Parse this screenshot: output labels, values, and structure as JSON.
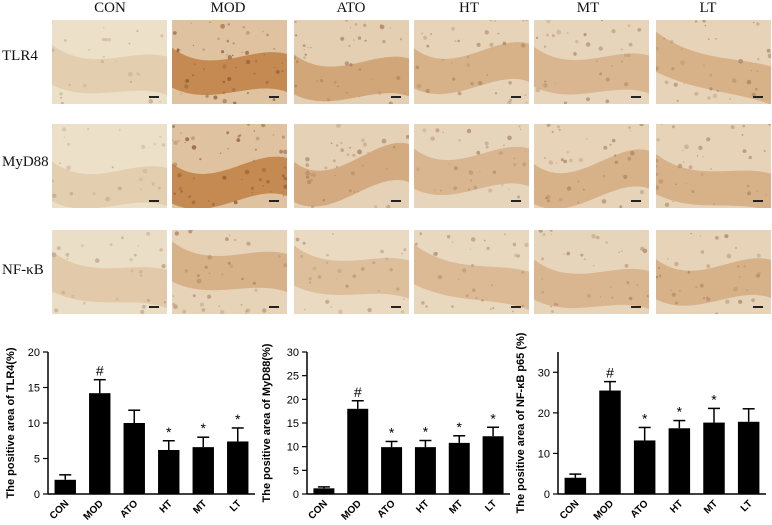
{
  "micrographs": {
    "columns": [
      "CON",
      "MOD",
      "ATO",
      "HT",
      "MT",
      "LT"
    ],
    "rows": [
      "TLR4",
      "MyD88",
      "NF-κB"
    ],
    "intensity": [
      [
        0.15,
        0.85,
        0.55,
        0.45,
        0.4,
        0.45
      ],
      [
        0.15,
        0.85,
        0.5,
        0.4,
        0.45,
        0.45
      ],
      [
        0.2,
        0.45,
        0.3,
        0.35,
        0.4,
        0.45
      ]
    ],
    "stain_color": "#b8702e",
    "background_color": "#efe6d2"
  },
  "chart_data": [
    {
      "type": "bar",
      "categories": [
        "CON",
        "MOD",
        "ATO",
        "HT",
        "MT",
        "LT"
      ],
      "values": [
        2.0,
        14.2,
        10.0,
        6.2,
        6.6,
        7.4
      ],
      "errors": [
        0.7,
        1.9,
        1.8,
        1.3,
        1.4,
        1.9
      ],
      "markers": [
        "",
        "#",
        "",
        "*",
        "*",
        "*"
      ],
      "ylabel": "The positive area of TLR4(%)",
      "ylim": [
        0,
        20
      ],
      "yticks": [
        0,
        5,
        10,
        15,
        20
      ],
      "bar_color": "#000000"
    },
    {
      "type": "bar",
      "categories": [
        "CON",
        "MOD",
        "ATO",
        "HT",
        "MT",
        "LT"
      ],
      "values": [
        1.2,
        18.0,
        9.9,
        9.9,
        10.8,
        12.2
      ],
      "errors": [
        0.3,
        1.7,
        1.2,
        1.4,
        1.5,
        1.9
      ],
      "markers": [
        "",
        "#",
        "*",
        "*",
        "*",
        "*"
      ],
      "ylabel": "The positive area of MyD88(%)",
      "ylim": [
        0,
        30
      ],
      "yticks": [
        0,
        5,
        10,
        15,
        20,
        25,
        30
      ],
      "bar_color": "#000000"
    },
    {
      "type": "bar",
      "categories": [
        "CON",
        "MOD",
        "ATO",
        "HT",
        "MT",
        "LT"
      ],
      "values": [
        4.0,
        25.5,
        13.2,
        16.2,
        17.6,
        17.8
      ],
      "errors": [
        0.9,
        2.2,
        3.2,
        1.9,
        3.5,
        3.2
      ],
      "markers": [
        "",
        "#",
        "*",
        "*",
        "*",
        ""
      ],
      "ylabel": "The positive area of NF-κB p65 (%)",
      "ylim": [
        0,
        35
      ],
      "yticks": [
        0,
        10,
        20,
        30
      ],
      "bar_color": "#000000"
    }
  ]
}
